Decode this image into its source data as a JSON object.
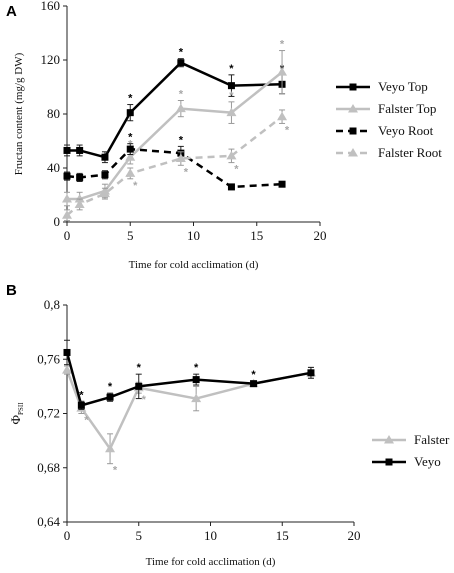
{
  "chart_data": [
    {
      "type": "line",
      "panel_label": "A",
      "xlabel": "Time for cold acclimation (d)",
      "ylabel": "Fructan content (mg/g DW)",
      "xlim": [
        0,
        20
      ],
      "ylim": [
        0,
        160
      ],
      "xticks": [
        "0",
        "5",
        "10",
        "15",
        "20"
      ],
      "yticks": [
        "0",
        "40",
        "80",
        "120",
        "160"
      ],
      "grid": false,
      "legend_position": "right",
      "series": [
        {
          "name": "Veyo Top",
          "color": "#000000",
          "dashed": false,
          "marker": "square",
          "x": [
            0,
            1,
            3,
            5,
            9,
            13,
            17
          ],
          "y": [
            53,
            53,
            48,
            81,
            118,
            101,
            102
          ],
          "err": [
            4,
            4,
            4,
            6,
            3,
            8,
            7
          ],
          "stars": [
            false,
            false,
            false,
            true,
            true,
            true,
            true
          ],
          "star_side": "top"
        },
        {
          "name": "Falster Top",
          "color": "#c0c0c0",
          "dashed": false,
          "marker": "triangle",
          "x": [
            0,
            1,
            3,
            5,
            9,
            13,
            17
          ],
          "y": [
            17,
            17,
            23,
            48,
            84,
            81,
            111
          ],
          "err": [
            5,
            5,
            5,
            5,
            6,
            8,
            16
          ],
          "stars": [
            false,
            false,
            false,
            true,
            true,
            true,
            true
          ],
          "star_side": "top"
        },
        {
          "name": "Veyo Root",
          "color": "#000000",
          "dashed": true,
          "marker": "square",
          "x": [
            0,
            1,
            3,
            5,
            9,
            13,
            17
          ],
          "y": [
            34,
            33,
            35,
            54,
            51,
            26,
            28
          ],
          "err": [
            3,
            3,
            3,
            4,
            5,
            2,
            2
          ],
          "stars": [
            false,
            false,
            false,
            true,
            true,
            false,
            false
          ],
          "star_side": "top"
        },
        {
          "name": "Falster Root",
          "color": "#c0c0c0",
          "dashed": true,
          "marker": "triangle",
          "x": [
            0,
            1,
            3,
            5,
            9,
            13,
            17
          ],
          "y": [
            5,
            13,
            21,
            36,
            47,
            49,
            78
          ],
          "err": [
            4,
            4,
            4,
            4,
            5,
            5,
            5
          ],
          "stars": [
            false,
            false,
            false,
            true,
            true,
            true,
            true
          ],
          "star_side": "bottom"
        }
      ]
    },
    {
      "type": "line",
      "panel_label": "B",
      "xlabel": "Time for cold acclimation (d)",
      "ylabel": "ΦPSII",
      "xlim": [
        0,
        20
      ],
      "ylim": [
        0.64,
        0.8
      ],
      "xticks": [
        "0",
        "5",
        "10",
        "15",
        "20"
      ],
      "yticks": [
        "0,64",
        "0,68",
        "0,72",
        "0,76",
        "0,8"
      ],
      "grid": false,
      "legend_position": "right",
      "series": [
        {
          "name": "Falster",
          "color": "#c0c0c0",
          "dashed": false,
          "marker": "triangle",
          "x": [
            0,
            1,
            3,
            5,
            9,
            13,
            17
          ],
          "y": [
            0.752,
            0.724,
            0.694,
            0.739,
            0.731,
            0.742,
            0.75
          ],
          "err": [
            0.003,
            0.004,
            0.011,
            0.004,
            0.009,
            0.002,
            0.004
          ],
          "stars": [
            false,
            true,
            true,
            true,
            false,
            false,
            false
          ],
          "star_side": "bottom"
        },
        {
          "name": "Veyo",
          "color": "#000000",
          "dashed": false,
          "marker": "square",
          "x": [
            0,
            1,
            3,
            5,
            9,
            13,
            17
          ],
          "y": [
            0.765,
            0.726,
            0.732,
            0.74,
            0.745,
            0.742,
            0.75
          ],
          "err": [
            0.009,
            0.003,
            0.003,
            0.009,
            0.004,
            0.002,
            0.004
          ],
          "stars": [
            false,
            true,
            true,
            true,
            true,
            true,
            false
          ],
          "star_side": "top"
        }
      ]
    }
  ]
}
